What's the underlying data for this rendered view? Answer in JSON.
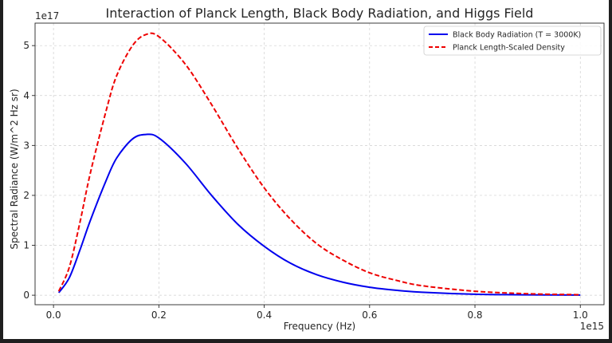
{
  "chart_data": {
    "type": "line",
    "title": "Interaction of Planck Length, Black Body Radiation, and Higgs Field",
    "xlabel": "Frequency (Hz)",
    "ylabel": "Spectral Radiance (W/m^2 Hz sr)",
    "x_offset_label": "1e15",
    "y_offset_label": "1e17",
    "xlim": [
      -0.035,
      1.045
    ],
    "ylim": [
      -0.19,
      5.45
    ],
    "x_ticks": [
      0.0,
      0.2,
      0.4,
      0.6,
      0.8,
      1.0
    ],
    "x_tick_labels": [
      "0.0",
      "0.2",
      "0.4",
      "0.6",
      "0.8",
      "1.0"
    ],
    "y_ticks": [
      0,
      1,
      2,
      3,
      4,
      5
    ],
    "y_tick_labels": [
      "0",
      "1",
      "2",
      "3",
      "4",
      "5"
    ],
    "grid": true,
    "legend_position": "top-right",
    "x": [
      0.01,
      0.03,
      0.05,
      0.07,
      0.1,
      0.12,
      0.15,
      0.175,
      0.2,
      0.25,
      0.3,
      0.35,
      0.4,
      0.45,
      0.5,
      0.55,
      0.6,
      0.65,
      0.7,
      0.8,
      0.9,
      1.0
    ],
    "series": [
      {
        "name": "Black Body Radiation (T = 3000K)",
        "color": "#0000ee",
        "style": "solid",
        "values": [
          0.05,
          0.35,
          0.9,
          1.5,
          2.3,
          2.75,
          3.13,
          3.22,
          3.15,
          2.65,
          2.0,
          1.42,
          0.98,
          0.64,
          0.41,
          0.26,
          0.16,
          0.1,
          0.06,
          0.02,
          0.008,
          0.003
        ]
      },
      {
        "name": "Planck Length-Scaled Density",
        "color": "#ee0000",
        "style": "dashed",
        "values": [
          0.08,
          0.56,
          1.45,
          2.45,
          3.7,
          4.4,
          5.0,
          5.22,
          5.18,
          4.63,
          3.82,
          2.94,
          2.15,
          1.52,
          1.03,
          0.7,
          0.45,
          0.3,
          0.19,
          0.08,
          0.03,
          0.01
        ]
      }
    ]
  }
}
